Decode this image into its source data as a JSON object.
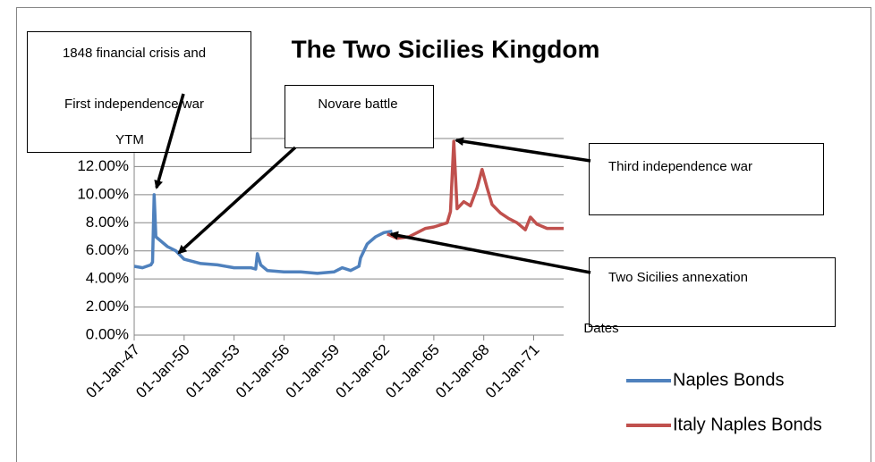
{
  "chart_data": {
    "type": "line",
    "title": "The Two Sicilies Kingdom",
    "y_label": "YTM",
    "x_label": "Dates",
    "xlim": [
      1847,
      1872.8
    ],
    "xticks": [
      {
        "value": 1847,
        "label": "01-Jan-47"
      },
      {
        "value": 1850,
        "label": "01-Jan-50"
      },
      {
        "value": 1853,
        "label": "01-Jan-53"
      },
      {
        "value": 1856,
        "label": "01-Jan-56"
      },
      {
        "value": 1859,
        "label": "01-Jan-59"
      },
      {
        "value": 1862,
        "label": "01-Jan-62"
      },
      {
        "value": 1865,
        "label": "01-Jan-65"
      },
      {
        "value": 1868,
        "label": "01-Jan-68"
      },
      {
        "value": 1871,
        "label": "01-Jan-71"
      }
    ],
    "ylim": [
      0,
      14
    ],
    "yticks": [
      {
        "value": 0,
        "label": "0.00%"
      },
      {
        "value": 2,
        "label": "2.00%"
      },
      {
        "value": 4,
        "label": "4.00%"
      },
      {
        "value": 6,
        "label": "6.00%"
      },
      {
        "value": 8,
        "label": "8.00%"
      },
      {
        "value": 10,
        "label": "10.00%"
      },
      {
        "value": 12,
        "label": "12.00%"
      }
    ],
    "grid": true,
    "legend": "right",
    "series": [
      {
        "name": "Naples Bonds",
        "color": "#4f81bd",
        "x": [
          1847.0,
          1847.5,
          1848.0,
          1848.1,
          1848.2,
          1848.3,
          1848.5,
          1849.0,
          1849.5,
          1850.0,
          1851.0,
          1852.0,
          1853.0,
          1854.0,
          1854.3,
          1854.4,
          1854.6,
          1855.0,
          1856.0,
          1857.0,
          1858.0,
          1859.0,
          1859.5,
          1860.0,
          1860.5,
          1860.6,
          1861.0,
          1861.5,
          1862.0,
          1862.5
        ],
        "values": [
          4.9,
          4.8,
          5.0,
          5.2,
          10.0,
          7.0,
          6.8,
          6.3,
          6.0,
          5.4,
          5.1,
          5.0,
          4.8,
          4.8,
          4.7,
          5.8,
          5.0,
          4.6,
          4.5,
          4.5,
          4.4,
          4.5,
          4.8,
          4.6,
          4.9,
          5.5,
          6.5,
          7.0,
          7.3,
          7.4
        ]
      },
      {
        "name": "Italy Naples Bonds",
        "color": "#c0504d",
        "x": [
          1862.2,
          1862.8,
          1863.5,
          1864.0,
          1864.5,
          1865.0,
          1865.8,
          1866.0,
          1866.2,
          1866.4,
          1866.8,
          1867.2,
          1867.6,
          1867.9,
          1868.2,
          1868.5,
          1869.0,
          1869.5,
          1870.0,
          1870.5,
          1870.8,
          1871.2,
          1871.8,
          1872.8
        ],
        "values": [
          7.2,
          6.9,
          7.0,
          7.3,
          7.6,
          7.7,
          8.0,
          8.8,
          13.8,
          9.0,
          9.5,
          9.2,
          10.5,
          11.8,
          10.5,
          9.3,
          8.7,
          8.3,
          8.0,
          7.5,
          8.4,
          7.9,
          7.6,
          7.6
        ]
      }
    ],
    "annotations": [
      {
        "lines": [
          "1848 financial crisis and",
          "First independence war"
        ]
      },
      {
        "lines": [
          "Novare battle"
        ]
      },
      {
        "lines": [
          "Third independence war"
        ]
      },
      {
        "lines": [
          "Two Sicilies  annexation"
        ]
      }
    ]
  }
}
